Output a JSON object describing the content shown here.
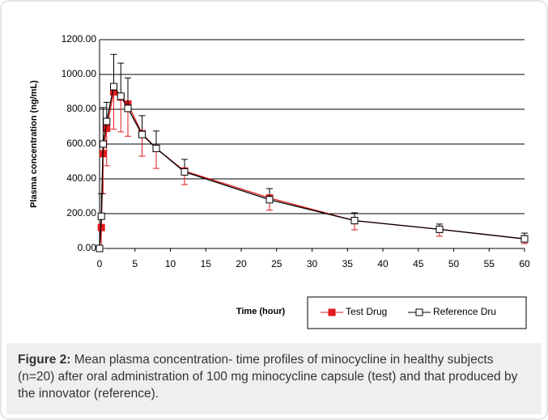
{
  "chart_data": {
    "type": "line",
    "x_label": "Time (hour)",
    "y_label": "Plasma concentration (ng/mL)",
    "x": [
      0,
      0.25,
      0.5,
      1,
      2,
      3,
      4,
      6,
      8,
      12,
      24,
      36,
      48,
      60
    ],
    "series": [
      {
        "name": "Test Drug",
        "color": "#e31a1c",
        "marker": "filled-square",
        "error_dir": "down",
        "values": [
          0,
          120,
          545,
          690,
          900,
          870,
          830,
          660,
          575,
          445,
          290,
          160,
          110,
          55
        ],
        "errors": [
          0,
          120,
          230,
          215,
          215,
          200,
          185,
          130,
          115,
          78,
          70,
          53,
          40,
          27
        ]
      },
      {
        "name": "Reference Dru",
        "color": "#000000",
        "marker": "open-square",
        "error_dir": "up",
        "values": [
          0,
          185,
          600,
          730,
          930,
          875,
          805,
          655,
          575,
          440,
          280,
          160,
          110,
          55
        ],
        "errors": [
          0,
          130,
          210,
          110,
          185,
          190,
          175,
          108,
          100,
          72,
          64,
          45,
          30,
          33
        ]
      }
    ],
    "xlim": [
      0,
      60
    ],
    "xticks": [
      0,
      5,
      10,
      15,
      20,
      25,
      30,
      35,
      40,
      45,
      50,
      55,
      60
    ],
    "ylim": [
      0,
      1200
    ],
    "yticks": [
      {
        "value": 0,
        "label": "0.00"
      },
      {
        "value": 200,
        "label": "200.00"
      },
      {
        "value": 400,
        "label": "400.00"
      },
      {
        "value": 600,
        "label": "600.00"
      },
      {
        "value": 800,
        "label": "800.00"
      },
      {
        "value": 1000,
        "label": "1000.00"
      },
      {
        "value": 1200,
        "label": "1200.00"
      }
    ],
    "grid": true
  },
  "figure": {
    "caption_label": "Figure 2:",
    "caption_text": "Mean plasma concentration- time profiles of minocycline in healthy subjects (n=20) after oral administration of 100 mg minocycline capsule (test) and that produced by the innovator (reference)."
  }
}
